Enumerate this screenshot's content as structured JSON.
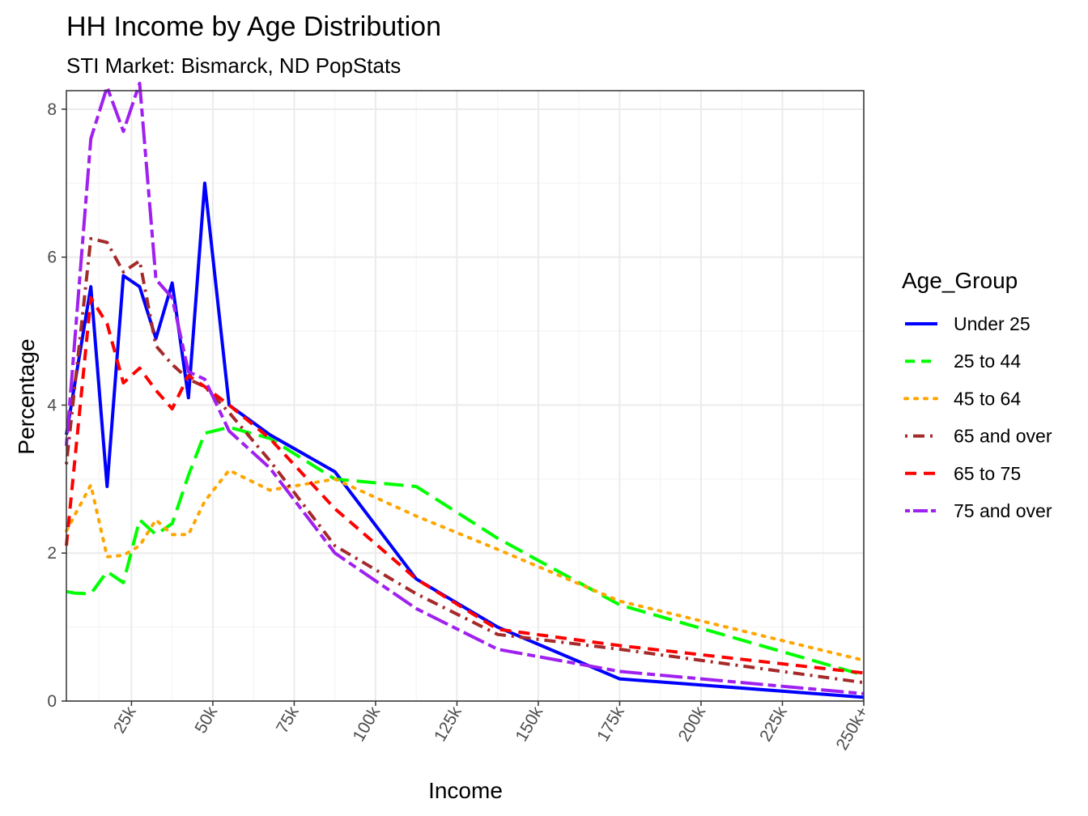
{
  "chart_data": {
    "type": "line",
    "title": "HH Income by Age Distribution",
    "subtitle": "STI Market: Bismarck, ND PopStats",
    "xlabel": "Income",
    "ylabel": "Percentage",
    "xlim": [
      5,
      250
    ],
    "ylim": [
      0,
      8.25
    ],
    "x_ticks": [
      {
        "value": 25,
        "label": "25k"
      },
      {
        "value": 50,
        "label": "50k"
      },
      {
        "value": 75,
        "label": "75k"
      },
      {
        "value": 100,
        "label": "100k"
      },
      {
        "value": 125,
        "label": "125k"
      },
      {
        "value": 150,
        "label": "150k"
      },
      {
        "value": 175,
        "label": "175k"
      },
      {
        "value": 200,
        "label": "200k"
      },
      {
        "value": 225,
        "label": "225k"
      },
      {
        "value": 250,
        "label": "250k+"
      }
    ],
    "y_ticks": [
      {
        "value": 0,
        "label": "0"
      },
      {
        "value": 2,
        "label": "2"
      },
      {
        "value": 4,
        "label": "4"
      },
      {
        "value": 6,
        "label": "6"
      },
      {
        "value": 8,
        "label": "8"
      }
    ],
    "grid": true,
    "legend_title": "Age_Group",
    "legend_position": "right",
    "series": [
      {
        "name": "Under 25",
        "color": "#0000FF",
        "dash": "solid",
        "x": [
          5,
          12.5,
          17.5,
          22.5,
          27.5,
          32.5,
          37.5,
          42.5,
          47.5,
          55,
          67.5,
          87.5,
          112.5,
          137.5,
          175,
          250
        ],
        "y": [
          3.6,
          5.6,
          2.9,
          5.75,
          5.6,
          4.9,
          5.65,
          4.1,
          7.0,
          4.0,
          3.6,
          3.1,
          1.65,
          1.0,
          0.3,
          0.05
        ]
      },
      {
        "name": "25 to 44",
        "color": "#00FF00",
        "dash": "longdash",
        "x": [
          5,
          7.5,
          12.5,
          17.5,
          22.5,
          27.5,
          32.5,
          37.5,
          42.5,
          47.5,
          55,
          67.5,
          87.5,
          112.5,
          137.5,
          175,
          250
        ],
        "y": [
          1.48,
          1.46,
          1.45,
          1.75,
          1.6,
          2.45,
          2.25,
          2.4,
          3.05,
          3.62,
          3.7,
          3.55,
          3.0,
          2.9,
          2.2,
          1.3,
          0.35
        ]
      },
      {
        "name": "45 to 64",
        "color": "#FFA500",
        "dash": "dotted",
        "x": [
          5,
          12.5,
          17.5,
          22.5,
          27.5,
          32.5,
          37.5,
          42.5,
          47.5,
          55,
          67.5,
          87.5,
          112.5,
          137.5,
          175,
          250
        ],
        "y": [
          2.3,
          2.92,
          1.95,
          1.97,
          2.1,
          2.45,
          2.25,
          2.25,
          2.7,
          3.12,
          2.85,
          3.0,
          2.5,
          2.05,
          1.35,
          0.55
        ]
      },
      {
        "name": "65 and over",
        "color": "#A52A2A",
        "dash": "dotdash",
        "x": [
          5,
          12.5,
          17.5,
          22.5,
          27.5,
          32.5,
          37.5,
          42.5,
          47.5,
          55,
          67.5,
          87.5,
          112.5,
          137.5,
          175,
          250
        ],
        "y": [
          3.2,
          6.25,
          6.2,
          5.8,
          5.95,
          4.8,
          4.55,
          4.35,
          4.25,
          3.9,
          3.25,
          2.1,
          1.45,
          0.9,
          0.7,
          0.25
        ]
      },
      {
        "name": "65 to 75",
        "color": "#FF0000",
        "dash": "dashed",
        "x": [
          5,
          12.5,
          17.5,
          22.5,
          27.5,
          32.5,
          37.5,
          42.5,
          47.5,
          55,
          67.5,
          87.5,
          112.5,
          137.5,
          175,
          250
        ],
        "y": [
          2.1,
          5.45,
          5.1,
          4.3,
          4.5,
          4.2,
          3.95,
          4.4,
          4.25,
          4.0,
          3.55,
          2.6,
          1.65,
          0.97,
          0.75,
          0.38
        ]
      },
      {
        "name": "75 and over",
        "color": "#A020F0",
        "dash": "twodash",
        "x": [
          5,
          12.5,
          17.5,
          22.5,
          27.5,
          32.5,
          37.5,
          42.5,
          47.5,
          55,
          67.5,
          87.5,
          112.5,
          137.5,
          175,
          250
        ],
        "y": [
          3.45,
          7.6,
          8.3,
          7.7,
          8.35,
          5.7,
          5.45,
          4.45,
          4.35,
          3.65,
          3.15,
          2.0,
          1.25,
          0.7,
          0.4,
          0.1
        ]
      }
    ]
  }
}
